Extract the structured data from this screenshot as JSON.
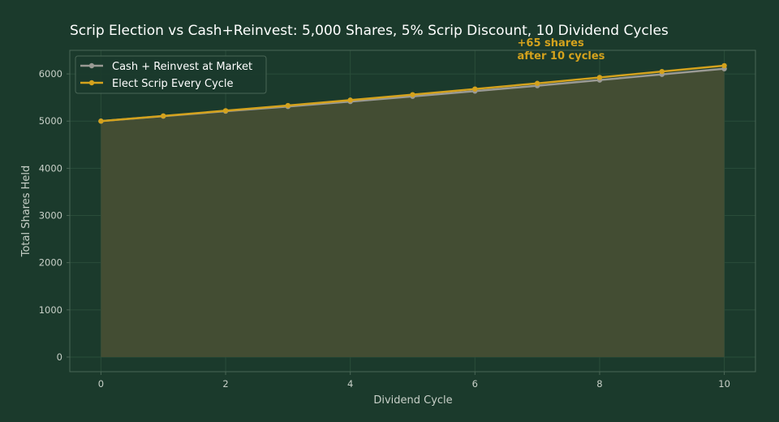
{
  "colors": {
    "background": "#1b3a2c",
    "plot_background": "#1b3a2c",
    "grid": "#2a4d3a",
    "frame": "#4a6656",
    "text": "#ffffff",
    "tick_text": "#c8d0c8",
    "fill": "#434d33"
  },
  "chart_data": {
    "type": "line",
    "title": "Scrip Election vs Cash+Reinvest: 5,000 Shares, 5% Scrip Discount, 10 Dividend Cycles",
    "xlabel": "Dividend Cycle",
    "ylabel": "Total Shares Held",
    "xlim": [
      -0.5,
      10.5
    ],
    "ylim": [
      -310,
      6500
    ],
    "x": [
      0,
      1,
      2,
      3,
      4,
      5,
      6,
      7,
      8,
      9,
      10
    ],
    "xticks": [
      0,
      2,
      4,
      6,
      8,
      10
    ],
    "yticks": [
      0,
      1000,
      2000,
      3000,
      4000,
      5000,
      6000
    ],
    "grid": true,
    "legend_position": "top-left",
    "series": [
      {
        "name": "Cash + Reinvest at Market",
        "color": "#9a9a94",
        "values": [
          5000,
          5105,
          5210,
          5310,
          5415,
          5525,
          5635,
          5750,
          5870,
          5990,
          6110
        ]
      },
      {
        "name": "Elect Scrip Every Cycle",
        "color": "#d4a21d",
        "values": [
          5000,
          5110,
          5220,
          5330,
          5445,
          5560,
          5680,
          5800,
          5925,
          6050,
          6175
        ]
      }
    ],
    "fill_between": {
      "from": "zero",
      "to": "Cash + Reinvest at Market"
    },
    "annotation": {
      "line1": "+65 shares",
      "line2": "after 10 cycles",
      "color": "#d4a21d",
      "x": 7.2,
      "y": 6415
    }
  }
}
